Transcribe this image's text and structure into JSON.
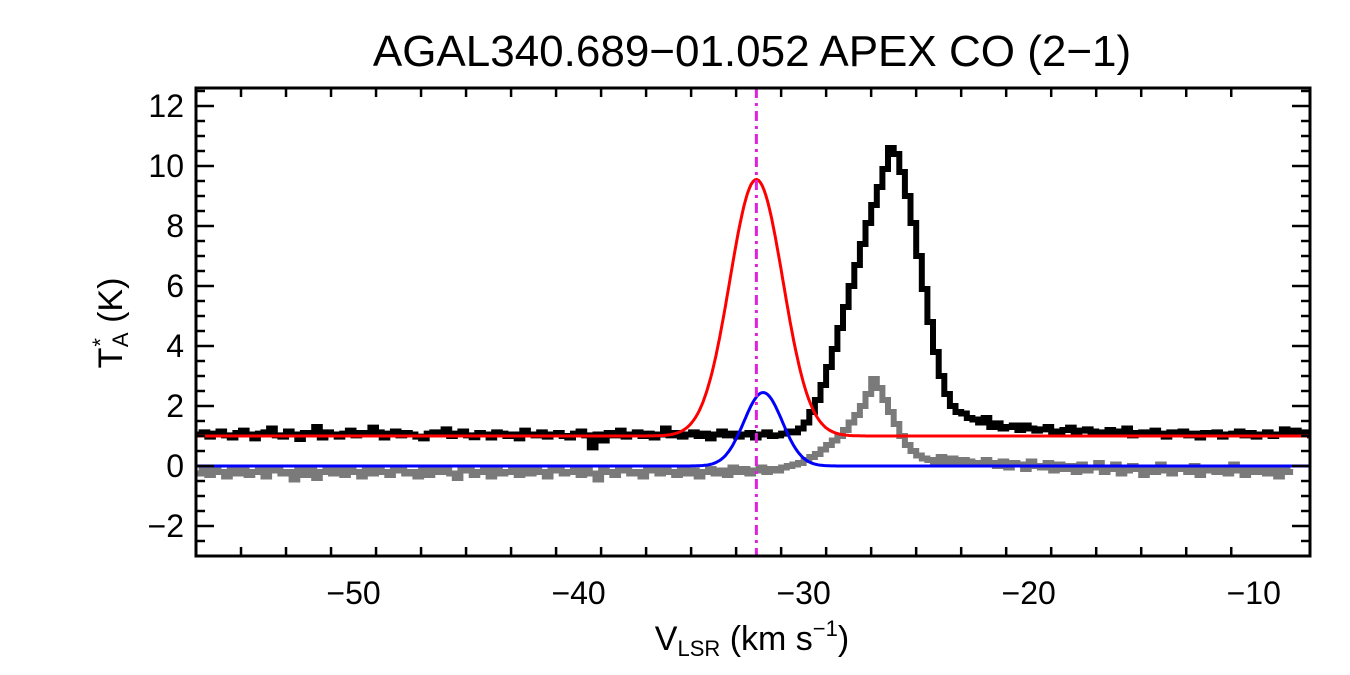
{
  "chart_data": {
    "type": "line",
    "title": "AGAL340.689−01.052  APEX CO (2−1)",
    "xlabel": {
      "main": "V",
      "sub": "LSR",
      "unit": " (km s",
      "sup": "−1",
      "close": ")"
    },
    "ylabel": {
      "main": "T",
      "sup": "*",
      "sub": "A",
      "unit": " (K)"
    },
    "xlim": [
      -57,
      -7.5
    ],
    "ylim": [
      -3,
      12.6
    ],
    "xticks": [
      -50,
      -40,
      -30,
      -20,
      -10
    ],
    "xtick_labels": [
      "−50",
      "−40",
      "−30",
      "−20",
      "−10"
    ],
    "yticks": [
      -2,
      0,
      2,
      4,
      6,
      8,
      10,
      12
    ],
    "ytick_labels": [
      "−2",
      "0",
      "2",
      "4",
      "6",
      "8",
      "10",
      "12"
    ],
    "grid": false,
    "vline": {
      "x": -32.1,
      "color": "#e020e0",
      "style": "dash-dot"
    },
    "series": [
      {
        "kind": "step",
        "color": "#000000",
        "offset": 1.0,
        "x_start": -57.0,
        "dx": 0.25,
        "values": [
          1.05,
          1.12,
          0.98,
          1.08,
          1.15,
          1.02,
          0.95,
          1.1,
          1.18,
          1.05,
          0.92,
          1.08,
          1.12,
          1.25,
          1.02,
          0.98,
          1.15,
          1.05,
          0.9,
          1.1,
          1.08,
          1.3,
          0.95,
          1.12,
          1.05,
          0.98,
          1.08,
          1.18,
          1.02,
          1.1,
          1.05,
          1.28,
          1.12,
          0.95,
          1.08,
          1.15,
          1.02,
          1.1,
          1.05,
          0.98,
          0.92,
          1.08,
          1.12,
          1.05,
          1.22,
          1.0,
          1.08,
          1.15,
          1.02,
          0.96,
          1.1,
          1.05,
          0.95,
          1.12,
          1.08,
          1.0,
          1.05,
          0.92,
          1.18,
          1.05,
          1.02,
          1.12,
          0.98,
          1.05,
          1.1,
          1.0,
          0.95,
          1.08,
          1.15,
          1.02,
          0.62,
          1.05,
          0.85,
          1.1,
          1.02,
          1.18,
          0.98,
          1.05,
          1.12,
          1.0,
          1.08,
          0.95,
          1.05,
          1.25,
          1.02,
          1.1,
          0.98,
          1.05,
          1.12,
          1.0,
          1.08,
          0.92,
          1.05,
          1.15,
          1.02,
          1.08,
          0.98,
          1.05,
          1.1,
          0.95,
          1.05,
          1.12,
          1.0,
          1.02,
          1.08,
          1.15,
          1.12,
          1.25,
          1.45,
          1.8,
          2.2,
          2.7,
          3.3,
          3.9,
          4.6,
          5.3,
          6.0,
          6.7,
          7.4,
          8.1,
          8.7,
          9.3,
          9.9,
          10.6,
          10.4,
          9.8,
          9.0,
          8.1,
          7.0,
          5.9,
          4.8,
          3.8,
          3.0,
          2.4,
          2.0,
          1.8,
          1.75,
          1.6,
          1.55,
          1.45,
          1.6,
          1.3,
          1.42,
          1.25,
          1.3,
          1.35,
          1.2,
          1.35,
          1.25,
          1.18,
          1.22,
          1.3,
          1.15,
          1.12,
          1.2,
          1.28,
          1.08,
          1.18,
          1.22,
          1.15,
          1.05,
          1.12,
          1.2,
          1.08,
          1.15,
          1.25,
          1.02,
          1.1,
          1.12,
          1.05,
          1.18,
          1.08,
          0.98,
          1.12,
          1.05,
          1.15,
          1.02,
          1.08,
          0.95,
          1.1,
          1.05,
          1.12,
          0.98,
          1.05,
          1.08,
          1.15,
          1.02,
          1.1,
          0.98,
          1.05,
          1.12,
          1.0,
          1.05,
          1.22,
          1.1,
          1.18,
          1.05,
          1.12,
          1.02,
          1.0,
          1.08,
          1.05,
          0.95
        ]
      },
      {
        "kind": "step",
        "color": "#7a7a7a",
        "offset": 0,
        "x_start": -57.0,
        "dx": 0.25,
        "values": [
          -0.25,
          -0.15,
          -0.3,
          -0.05,
          -0.2,
          -0.35,
          -0.1,
          -0.25,
          -0.15,
          -0.3,
          -0.2,
          -0.1,
          -0.35,
          -0.15,
          -0.05,
          -0.25,
          -0.2,
          -0.45,
          -0.1,
          -0.3,
          -0.15,
          -0.4,
          -0.2,
          -0.1,
          -0.25,
          -0.15,
          -0.3,
          -0.05,
          -0.2,
          -0.35,
          -0.15,
          -0.25,
          -0.1,
          -0.2,
          -0.3,
          -0.15,
          -0.05,
          -0.25,
          -0.2,
          -0.35,
          -0.1,
          -0.3,
          -0.15,
          -0.2,
          -0.05,
          -0.25,
          -0.4,
          -0.15,
          -0.1,
          -0.3,
          -0.2,
          -0.15,
          -0.35,
          -0.1,
          -0.25,
          -0.2,
          -0.05,
          -0.3,
          -0.15,
          -0.25,
          -0.1,
          -0.2,
          -0.35,
          -0.15,
          -0.05,
          -0.25,
          -0.2,
          -0.1,
          -0.3,
          -0.15,
          -0.25,
          -0.45,
          -0.1,
          -0.2,
          -0.3,
          -0.15,
          -0.05,
          -0.25,
          -0.2,
          -0.35,
          -0.1,
          -0.15,
          -0.25,
          -0.05,
          -0.2,
          -0.3,
          -0.1,
          -0.25,
          -0.15,
          -0.35,
          -0.2,
          -0.1,
          -0.25,
          -0.15,
          -0.3,
          -0.05,
          -0.2,
          -0.1,
          -0.25,
          -0.15,
          -0.05,
          -0.2,
          -0.1,
          -0.15,
          -0.05,
          0.0,
          0.05,
          0.1,
          0.2,
          0.3,
          0.4,
          0.55,
          0.7,
          0.85,
          1.0,
          1.2,
          1.45,
          1.7,
          2.0,
          2.4,
          2.9,
          2.6,
          2.2,
          1.8,
          1.4,
          1.0,
          0.7,
          0.5,
          0.35,
          0.25,
          0.2,
          0.15,
          0.3,
          0.1,
          0.25,
          0.05,
          0.2,
          0.15,
          0.1,
          0.05,
          0.2,
          0.1,
          0.0,
          0.15,
          -0.05,
          0.1,
          0.05,
          -0.1,
          0.15,
          0.0,
          -0.05,
          0.1,
          -0.15,
          0.05,
          -0.1,
          0.0,
          -0.2,
          0.05,
          -0.15,
          -0.05,
          0.1,
          -0.2,
          -0.1,
          0.05,
          -0.25,
          -0.15,
          0.0,
          -0.1,
          -0.3,
          -0.05,
          -0.2,
          0.05,
          -0.15,
          -0.25,
          -0.05,
          -0.1,
          -0.2,
          0.0,
          -0.3,
          -0.15,
          -0.05,
          -0.2,
          -0.1,
          -0.25,
          0.05,
          -0.15,
          -0.3,
          -0.1,
          -0.2,
          -0.05,
          -0.25,
          -0.15,
          -0.35,
          -0.1,
          -0.2
        ]
      },
      {
        "kind": "gaussian",
        "color": "#ff0000",
        "baseline": 1.0,
        "amplitude": 8.55,
        "center": -32.1,
        "sigma": 1.18
      },
      {
        "kind": "gaussian",
        "color": "#0000ff",
        "baseline": 0.0,
        "amplitude": 2.45,
        "center": -31.8,
        "sigma": 0.85
      }
    ]
  }
}
